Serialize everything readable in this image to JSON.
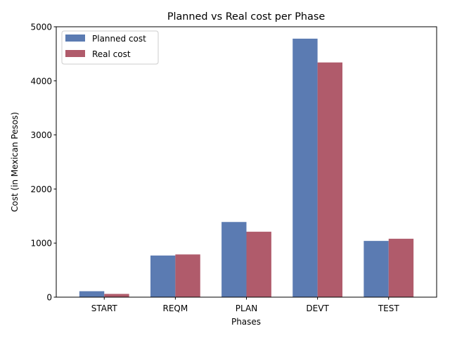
{
  "chart_data": {
    "type": "bar",
    "title": "Planned vs Real cost per Phase",
    "xlabel": "Phases",
    "ylabel": "Cost (in Mexican Pesos)",
    "categories": [
      "START",
      "REQM",
      "PLAN",
      "DEVT",
      "TEST"
    ],
    "series": [
      {
        "name": "Planned cost",
        "values": [
          110,
          770,
          1390,
          4780,
          1040
        ],
        "color": "#5b7bb2"
      },
      {
        "name": "Real cost",
        "values": [
          60,
          790,
          1210,
          4340,
          1080
        ],
        "color": "#b05b6b"
      }
    ],
    "ylim": [
      0,
      5000
    ],
    "yticks": [
      "0",
      "1000",
      "2000",
      "3000",
      "4000",
      "5000"
    ],
    "grid": false,
    "legend": "top-left"
  }
}
